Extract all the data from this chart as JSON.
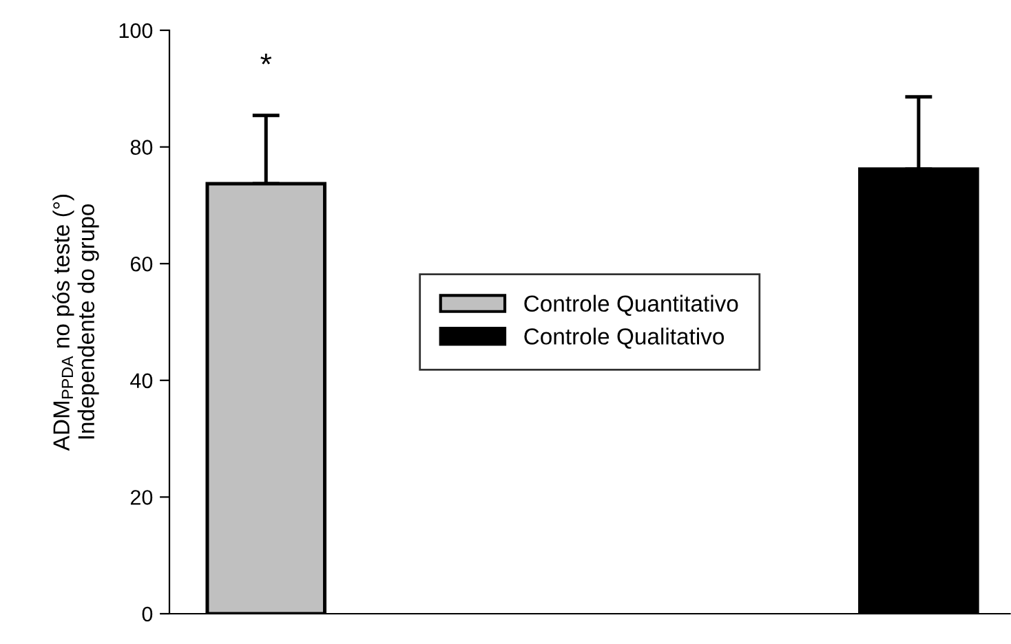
{
  "chart_data": {
    "type": "bar",
    "ylabel": "ADM$_{PPDA}$ no pós teste (°)\nIndependente do grupo",
    "categories": [
      null,
      null
    ],
    "series": [
      {
        "name": "Controle Quantitativo",
        "color": "#c0c0c0",
        "values": [
          73.7,
          null
        ],
        "errors": [
          [
            73.7,
            85.4
          ],
          null
        ]
      },
      {
        "name": "Controle Qualitativo",
        "color": "#000000",
        "values": [
          null,
          76.2
        ],
        "errors": [
          null,
          [
            76.2,
            88.6
          ]
        ]
      }
    ],
    "ylim": [
      0,
      100
    ],
    "yticks": [
      0,
      20,
      40,
      60,
      80,
      100
    ],
    "annotations": [
      "*"
    ],
    "legend": "center",
    "grid": false
  }
}
